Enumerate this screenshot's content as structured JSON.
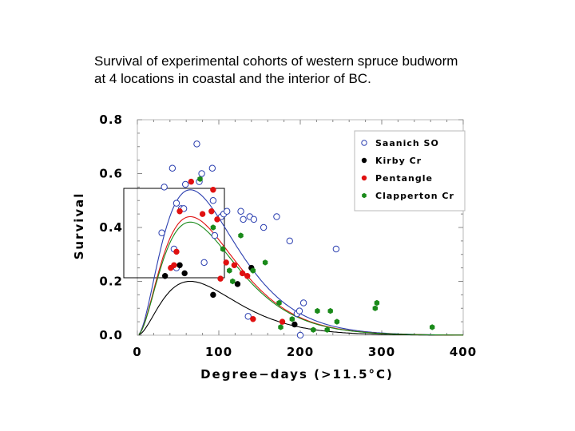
{
  "caption": {
    "line1": "Survival of experimental cohorts of western spruce budworm",
    "line2": "at 4 locations in coastal and the interior of BC."
  },
  "chart_data": {
    "type": "scatter",
    "xlabel": "Degree−days (>11.5°C)",
    "ylabel": "Survival",
    "xlim": [
      0,
      400
    ],
    "ylim": [
      0,
      0.8
    ],
    "x_ticks": [
      {
        "value": 0,
        "label": "0"
      },
      {
        "value": 100,
        "label": "100"
      },
      {
        "value": 200,
        "label": "200"
      },
      {
        "value": 300,
        "label": "300"
      },
      {
        "value": 400,
        "label": "400"
      }
    ],
    "y_ticks": [
      {
        "value": 0.0,
        "label": "0.0"
      },
      {
        "value": 0.2,
        "label": "0.2"
      },
      {
        "value": 0.4,
        "label": "0.4"
      },
      {
        "value": 0.6,
        "label": "0.6"
      },
      {
        "value": 0.8,
        "label": "0.8"
      }
    ],
    "legend_position": "top-right",
    "series": [
      {
        "name": "Saanich SO",
        "color": "#2b3fb0",
        "marker": "open-circle",
        "curve_peak": 0.54,
        "points": [
          [
            30,
            0.38
          ],
          [
            33,
            0.55
          ],
          [
            43,
            0.62
          ],
          [
            48,
            0.49
          ],
          [
            54,
            0.47
          ],
          [
            57,
            0.47
          ],
          [
            59,
            0.56
          ],
          [
            73,
            0.71
          ],
          [
            76,
            0.57
          ],
          [
            79,
            0.6
          ],
          [
            92,
            0.62
          ],
          [
            93,
            0.5
          ],
          [
            95,
            0.37
          ],
          [
            103,
            0.44
          ],
          [
            106,
            0.45
          ],
          [
            110,
            0.46
          ],
          [
            127,
            0.46
          ],
          [
            130,
            0.43
          ],
          [
            138,
            0.44
          ],
          [
            143,
            0.43
          ],
          [
            155,
            0.4
          ],
          [
            171,
            0.44
          ],
          [
            187,
            0.35
          ],
          [
            196,
            0.08
          ],
          [
            199,
            0.09
          ],
          [
            204,
            0.12
          ],
          [
            244,
            0.32
          ],
          [
            45,
            0.32
          ],
          [
            48,
            0.25
          ],
          [
            82,
            0.27
          ],
          [
            136,
            0.07
          ],
          [
            200,
            0.0
          ]
        ]
      },
      {
        "name": "Kirby Cr",
        "color": "#000000",
        "marker": "filled-circle",
        "curve_peak": 0.2,
        "points": [
          [
            34,
            0.22
          ],
          [
            52,
            0.26
          ],
          [
            58,
            0.23
          ],
          [
            93,
            0.15
          ],
          [
            123,
            0.19
          ],
          [
            140,
            0.25
          ],
          [
            193,
            0.04
          ]
        ]
      },
      {
        "name": "Pentangle",
        "color": "#e01010",
        "marker": "filled-circle",
        "curve_peak": 0.44,
        "points": [
          [
            41,
            0.25
          ],
          [
            45,
            0.26
          ],
          [
            48,
            0.31
          ],
          [
            52,
            0.46
          ],
          [
            66,
            0.57
          ],
          [
            80,
            0.45
          ],
          [
            91,
            0.46
          ],
          [
            93,
            0.54
          ],
          [
            98,
            0.43
          ],
          [
            102,
            0.21
          ],
          [
            109,
            0.27
          ],
          [
            119,
            0.26
          ],
          [
            129,
            0.23
          ],
          [
            135,
            0.22
          ],
          [
            142,
            0.06
          ],
          [
            178,
            0.05
          ]
        ]
      },
      {
        "name": "Clapperton Cr",
        "color": "#1a8a1a",
        "marker": "filled-hexagon",
        "curve_peak": 0.42,
        "points": [
          [
            77,
            0.58
          ],
          [
            93,
            0.4
          ],
          [
            105,
            0.32
          ],
          [
            113,
            0.24
          ],
          [
            117,
            0.2
          ],
          [
            127,
            0.37
          ],
          [
            142,
            0.24
          ],
          [
            157,
            0.27
          ],
          [
            174,
            0.12
          ],
          [
            176,
            0.03
          ],
          [
            190,
            0.06
          ],
          [
            216,
            0.02
          ],
          [
            221,
            0.09
          ],
          [
            233,
            0.02
          ],
          [
            237,
            0.09
          ],
          [
            245,
            0.05
          ],
          [
            292,
            0.1
          ],
          [
            294,
            0.12
          ],
          [
            362,
            0.03
          ]
        ]
      }
    ]
  }
}
